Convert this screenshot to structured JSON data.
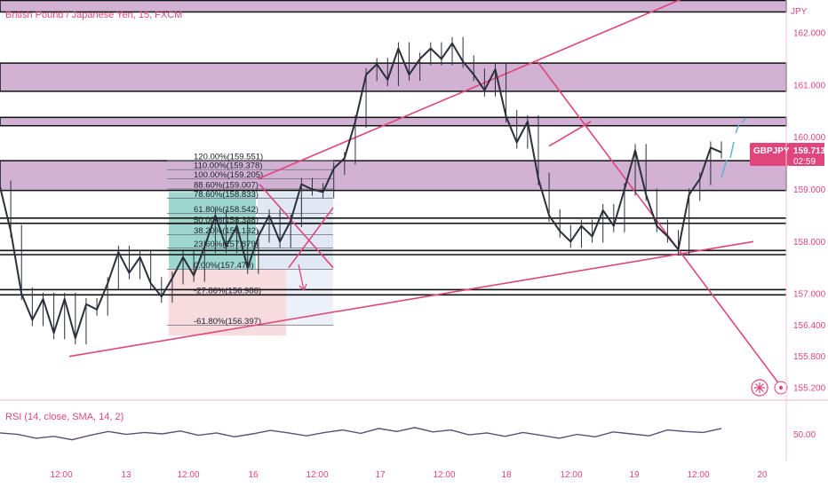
{
  "chart_data": {
    "type": "line",
    "title": "British Pound / Japanese Yen, 15, FXCM",
    "symbol": "GBPJPY",
    "currency_label": "JPY",
    "last_price": "159.713",
    "countdown": "02:59",
    "accent_color": "#e0457b",
    "zone_color": "#c9a3cd",
    "candle_color": "#2b2f3a",
    "ylim": [
      154.95,
      163.0
    ],
    "x_ticks": [
      "12:00",
      "13",
      "12:00",
      "16",
      "12:00",
      "17",
      "12:00",
      "18",
      "12:00",
      "19",
      "12:00",
      "20"
    ],
    "y_ticks": [
      "162.000",
      "161.000",
      "160.000",
      "159.000",
      "158.000",
      "157.000",
      "156.400",
      "155.800",
      "155.200"
    ],
    "price_series": [
      {
        "t": 0,
        "p": 159.05
      },
      {
        "t": 1,
        "p": 158.2
      },
      {
        "t": 2,
        "p": 157.0
      },
      {
        "t": 3,
        "p": 156.5
      },
      {
        "t": 4,
        "p": 156.9
      },
      {
        "t": 5,
        "p": 156.25
      },
      {
        "t": 6,
        "p": 156.9
      },
      {
        "t": 7,
        "p": 156.15
      },
      {
        "t": 8,
        "p": 156.8
      },
      {
        "t": 9,
        "p": 156.7
      },
      {
        "t": 10,
        "p": 157.2
      },
      {
        "t": 11,
        "p": 157.8
      },
      {
        "t": 12,
        "p": 157.4
      },
      {
        "t": 13,
        "p": 157.7
      },
      {
        "t": 14,
        "p": 157.2
      },
      {
        "t": 15,
        "p": 156.95
      },
      {
        "t": 16,
        "p": 157.3
      },
      {
        "t": 17,
        "p": 157.7
      },
      {
        "t": 18,
        "p": 157.35
      },
      {
        "t": 19,
        "p": 157.9
      },
      {
        "t": 20,
        "p": 158.5
      },
      {
        "t": 21,
        "p": 157.9
      },
      {
        "t": 22,
        "p": 158.3
      },
      {
        "t": 23,
        "p": 157.5
      },
      {
        "t": 24,
        "p": 158.1
      },
      {
        "t": 25,
        "p": 158.5
      },
      {
        "t": 26,
        "p": 158.0
      },
      {
        "t": 27,
        "p": 158.4
      },
      {
        "t": 28,
        "p": 159.1
      },
      {
        "t": 29,
        "p": 159.0
      },
      {
        "t": 30,
        "p": 158.95
      },
      {
        "t": 31,
        "p": 159.4
      },
      {
        "t": 32,
        "p": 159.6
      },
      {
        "t": 33,
        "p": 160.3
      },
      {
        "t": 34,
        "p": 161.2
      },
      {
        "t": 35,
        "p": 161.4
      },
      {
        "t": 36,
        "p": 161.1
      },
      {
        "t": 37,
        "p": 161.7
      },
      {
        "t": 38,
        "p": 161.2
      },
      {
        "t": 39,
        "p": 161.5
      },
      {
        "t": 40,
        "p": 161.7
      },
      {
        "t": 41,
        "p": 161.5
      },
      {
        "t": 42,
        "p": 161.8
      },
      {
        "t": 43,
        "p": 161.45
      },
      {
        "t": 44,
        "p": 161.2
      },
      {
        "t": 45,
        "p": 160.9
      },
      {
        "t": 46,
        "p": 161.3
      },
      {
        "t": 47,
        "p": 160.4
      },
      {
        "t": 48,
        "p": 159.9
      },
      {
        "t": 49,
        "p": 160.3
      },
      {
        "t": 50,
        "p": 159.2
      },
      {
        "t": 51,
        "p": 158.5
      },
      {
        "t": 52,
        "p": 158.2
      },
      {
        "t": 53,
        "p": 158.0
      },
      {
        "t": 54,
        "p": 158.3
      },
      {
        "t": 55,
        "p": 158.1
      },
      {
        "t": 56,
        "p": 158.6
      },
      {
        "t": 57,
        "p": 158.3
      },
      {
        "t": 58,
        "p": 159.0
      },
      {
        "t": 59,
        "p": 159.75
      },
      {
        "t": 60,
        "p": 158.9
      },
      {
        "t": 61,
        "p": 158.3
      },
      {
        "t": 62,
        "p": 158.1
      },
      {
        "t": 63,
        "p": 157.85
      },
      {
        "t": 64,
        "p": 158.9
      },
      {
        "t": 65,
        "p": 159.2
      },
      {
        "t": 66,
        "p": 159.8
      },
      {
        "t": 67,
        "p": 159.71
      }
    ],
    "rsi": {
      "label": "RSI (14, close, SMA, 14, 2)",
      "value_label": "50.00",
      "values": [
        52,
        49,
        41,
        45,
        38,
        47,
        55,
        49,
        53,
        50,
        56,
        47,
        52,
        44,
        50,
        57,
        52,
        46,
        53,
        58,
        51,
        61,
        55,
        63,
        54,
        58,
        48,
        52,
        45,
        53,
        47,
        41,
        49,
        44,
        54,
        50,
        46,
        58,
        55,
        53,
        61
      ]
    },
    "fib_levels": [
      {
        "label": "120.00%(159.551)",
        "price": 159.551
      },
      {
        "label": "110.00%(159.378)",
        "price": 159.378
      },
      {
        "label": "100.00%(159.205)",
        "price": 159.205
      },
      {
        "label": "88.60%(159.007)",
        "price": 159.007
      },
      {
        "label": "78.60%(158.833)",
        "price": 158.833
      },
      {
        "label": "61.80%(158.542)",
        "price": 158.542
      },
      {
        "label": "50.00%(158.338)",
        "price": 158.338
      },
      {
        "label": "38.20%(158.132)",
        "price": 158.132
      },
      {
        "label": "23.60%(157.879)",
        "price": 157.879
      },
      {
        "label": "0.00%(157.470)",
        "price": 157.47
      },
      {
        "label": "-27.86%(156.986)",
        "price": 156.986
      },
      {
        "label": "-61.80%(156.397)",
        "price": 156.397
      }
    ],
    "resistance_zones": [
      [
        162.4,
        162.62
      ],
      [
        160.88,
        161.42
      ],
      [
        160.22,
        160.38
      ],
      [
        158.98,
        159.55
      ]
    ],
    "support_lines": [
      158.45,
      158.35,
      157.83,
      157.75,
      157.08,
      156.98
    ],
    "grid": false,
    "legend": "none"
  }
}
